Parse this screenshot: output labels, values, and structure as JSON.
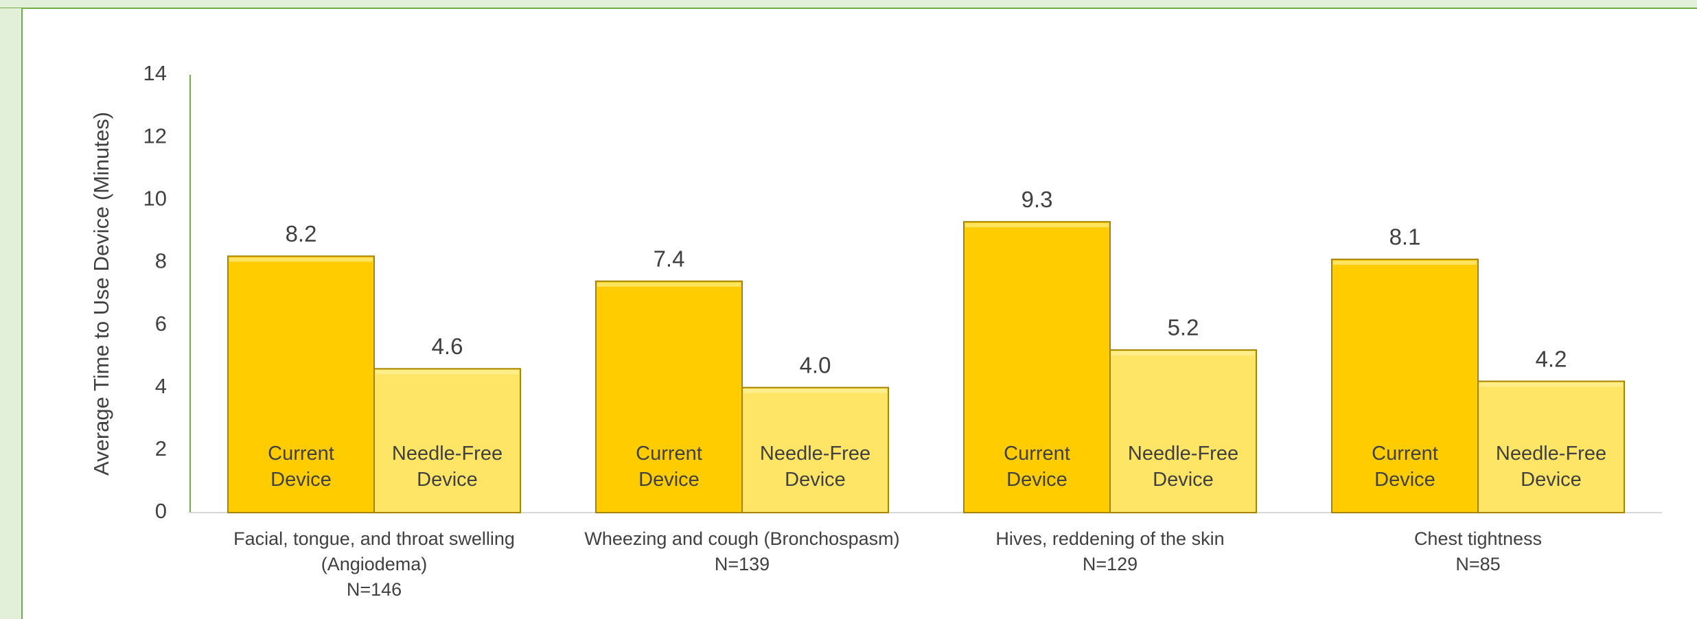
{
  "chart_data": {
    "type": "bar",
    "y_label": "Average Time to Use Device (Minutes)",
    "categories": [
      "Facial, tongue, and throat swelling (Angiodema)",
      "Wheezing and cough (Bronchospasm)",
      "Hives, reddening of the skin",
      "Chest tightness"
    ],
    "sample_sizes": [
      "N=146",
      "N=139",
      "N=129",
      "N=85"
    ],
    "series": [
      {
        "name": "Current Device",
        "color": "#ffcc00",
        "values": [
          8.2,
          7.4,
          9.3,
          8.1
        ],
        "value_labels": [
          "8.2",
          "7.4",
          "9.3",
          "8.1"
        ]
      },
      {
        "name": "Needle-Free Device",
        "color": "#ffe566",
        "values": [
          4.6,
          4.0,
          5.2,
          4.2
        ],
        "value_labels": [
          "4.6",
          "4.0",
          "5.2",
          "4.2"
        ]
      }
    ],
    "ylim": [
      0,
      14
    ],
    "yticks": [
      0,
      2,
      4,
      6,
      8,
      10,
      12,
      14
    ],
    "grid": false
  }
}
